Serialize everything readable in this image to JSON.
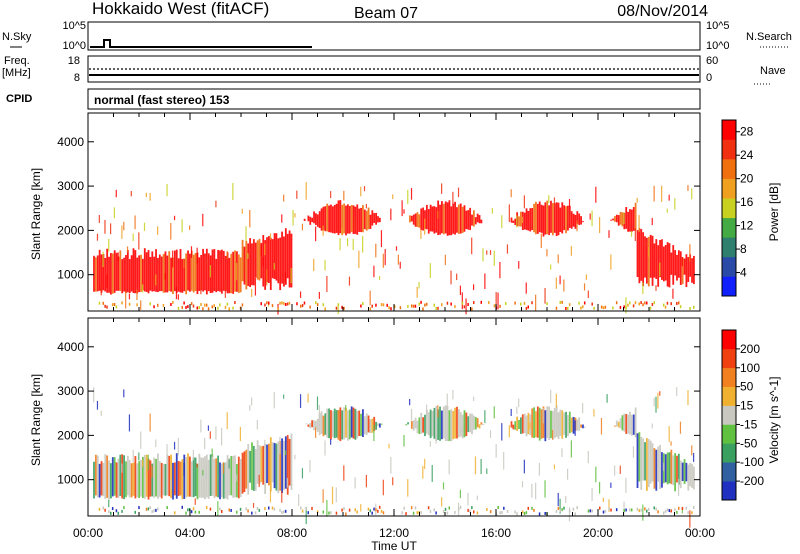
{
  "header": {
    "station": "Hokkaido West (fitACF)",
    "beam": "Beam 07",
    "date": "08/Nov/2014"
  },
  "strip_labels": {
    "nsky": "N.Sky",
    "nsky_ticks": [
      "10^5",
      "10^0"
    ],
    "nsearch": "N.Search",
    "nsearch_ticks": [
      "10^5",
      "10^0"
    ],
    "freq_line1": "Freq.",
    "freq_line2": "[MHz]",
    "freq_ticks": [
      "18",
      "8"
    ],
    "nave": "Nave",
    "nave_ticks": [
      "60",
      "0"
    ],
    "cpid": "CPID",
    "cpid_text": "normal (fast stereo) 153"
  },
  "chart_data": [
    {
      "type": "heatmap",
      "title": "",
      "xlabel": "Time UT",
      "ylabel": "Slant Range [km]",
      "x_ticks": [
        "00:00",
        "04:00",
        "08:00",
        "12:00",
        "16:00",
        "20:00",
        "00:00"
      ],
      "y_ticks": [
        1000,
        2000,
        3000,
        4000
      ],
      "ylim": [
        180,
        4650
      ],
      "colorbar": {
        "label": "Power [dB]",
        "ticks": [
          4,
          8,
          12,
          16,
          20,
          24,
          28
        ],
        "range": [
          0,
          30
        ],
        "colors": [
          "#1020ff",
          "#2a4aa8",
          "#2f7f6f",
          "#44aa44",
          "#c8d020",
          "#f0a020",
          "#f07010",
          "#f03010",
          "#ff0000"
        ]
      },
      "features": {
        "lower_band_km": [
          550,
          1300,
          1600,
          2000
        ],
        "scatter_top_km": 3050
      }
    },
    {
      "type": "heatmap",
      "title": "",
      "xlabel": "Time UT",
      "ylabel": "Slant Range [km]",
      "x_ticks": [
        "00:00",
        "04:00",
        "08:00",
        "12:00",
        "16:00",
        "20:00",
        "00:00"
      ],
      "y_ticks": [
        1000,
        2000,
        3000,
        4000
      ],
      "ylim": [
        180,
        4650
      ],
      "colorbar": {
        "label": "Velocity [m s^-1]",
        "ticks": [
          200,
          100,
          50,
          15,
          -15,
          -50,
          -100,
          -200
        ],
        "colors": [
          "#2030c0",
          "#3060a0",
          "#3aa060",
          "#60c040",
          "#c8c8c0",
          "#f0b030",
          "#f08020",
          "#f04010",
          "#ff0000"
        ]
      }
    }
  ]
}
